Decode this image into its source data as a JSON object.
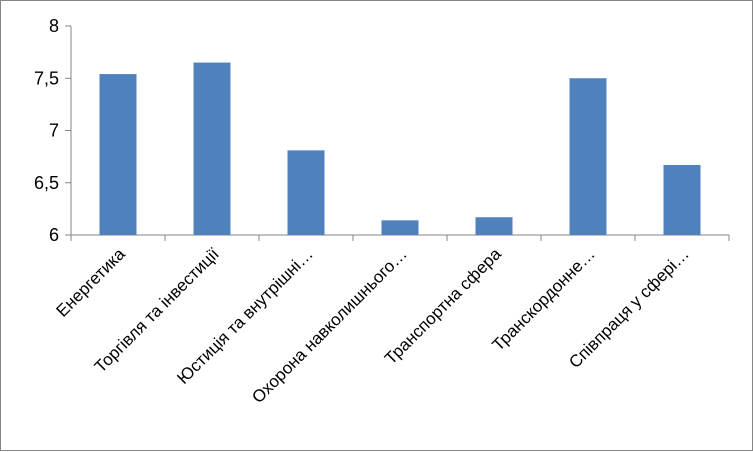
{
  "chart_data": {
    "type": "bar",
    "title": "",
    "xlabel": "",
    "ylabel": "",
    "ylim": [
      6,
      8
    ],
    "yticks": [
      6,
      6.5,
      7,
      7.5,
      8
    ],
    "ytick_labels": [
      "6",
      "6,5",
      "7",
      "7,5",
      "8"
    ],
    "grid": false,
    "legend": "none",
    "bar_color": "#4F81BD",
    "categories": [
      "Енергетика",
      "Торгівля та інвестиції",
      "Юстиція та внутрішні…",
      "Охорона навколишнього…",
      "Транспортна сфера",
      "Транскордонне…",
      "Співпраця у сфері…"
    ],
    "values": [
      7.54,
      7.65,
      6.81,
      6.14,
      6.17,
      7.5,
      6.67
    ]
  }
}
